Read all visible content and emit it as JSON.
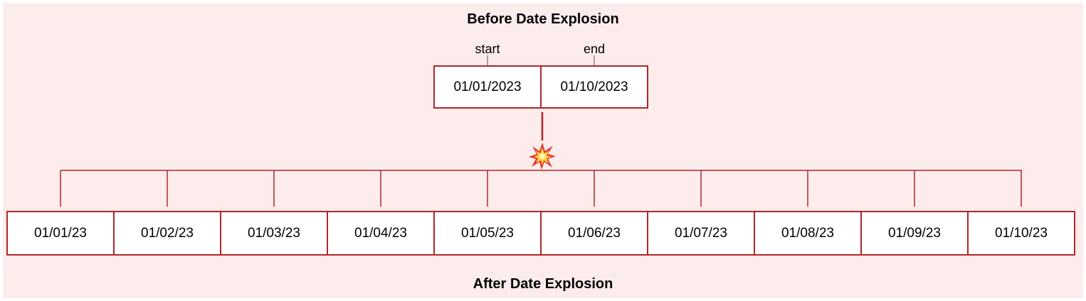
{
  "before": {
    "title": "Before Date Explosion",
    "columns": [
      {
        "label": "start",
        "value": "01/01/2023"
      },
      {
        "label": "end",
        "value": "01/10/2023"
      }
    ]
  },
  "after": {
    "title": "After Date Explosion",
    "dates": [
      "01/01/23",
      "01/02/23",
      "01/03/23",
      "01/04/23",
      "01/05/23",
      "01/06/23",
      "01/07/23",
      "01/08/23",
      "01/09/23",
      "01/10/23"
    ]
  },
  "colors": {
    "background": "#fdecec",
    "border": "#b0262b",
    "connector": "#b0262b",
    "tick": "#888888"
  },
  "icons": {
    "explosion": "collision-burst-icon"
  }
}
